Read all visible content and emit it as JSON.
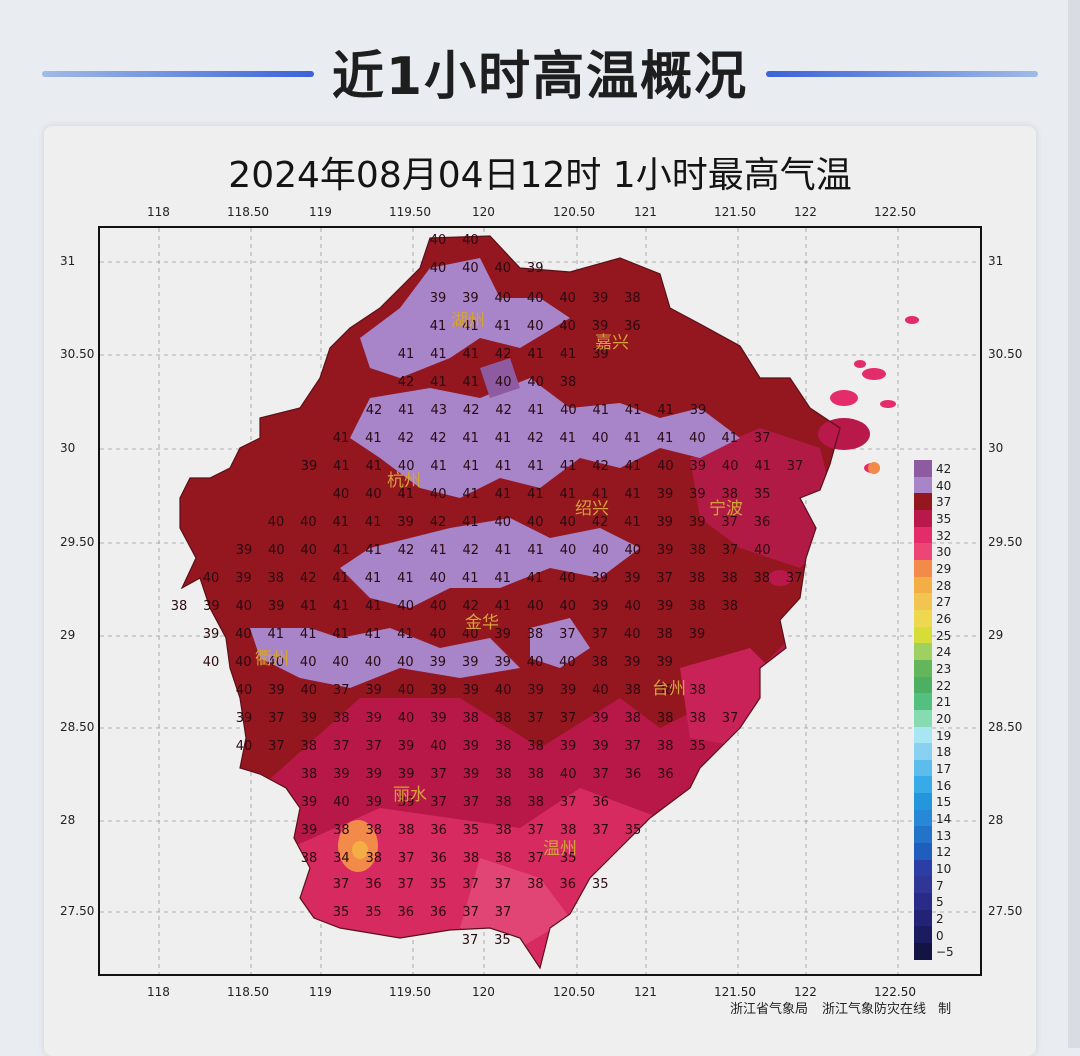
{
  "page": {
    "title": "近1小时高温概况"
  },
  "map": {
    "title": "2024年08月04日12时  1小时最高气温",
    "lon_labels": [
      "118",
      "118.50",
      "119",
      "119.50",
      "120",
      "120.50",
      "121",
      "121.50",
      "122",
      "122.50"
    ],
    "lat_labels": [
      "31",
      "30.50",
      "30",
      "29.50",
      "29",
      "28.50",
      "28",
      "27.50"
    ],
    "cities": [
      "湖州",
      "嘉兴",
      "杭州",
      "绍兴",
      "宁波",
      "金华",
      "衢州",
      "台州",
      "丽水",
      "温州"
    ],
    "temperature_grid": [
      [
        "40",
        "40"
      ],
      [
        "40",
        "40",
        "40",
        "39"
      ],
      [
        "39",
        "39",
        "40",
        "40",
        "40",
        "39",
        "38"
      ],
      [
        "41",
        "41",
        "41",
        "40",
        "40",
        "39",
        "36"
      ],
      [
        "41",
        "41",
        "41",
        "42",
        "41",
        "41",
        "39"
      ],
      [
        "42",
        "41",
        "41",
        "40",
        "40",
        "38"
      ],
      [
        "42",
        "41",
        "43",
        "42",
        "42",
        "41",
        "40",
        "41",
        "41",
        "41",
        "39"
      ],
      [
        "41",
        "41",
        "42",
        "42",
        "41",
        "41",
        "42",
        "41",
        "40",
        "41",
        "41",
        "40",
        "41",
        "37"
      ],
      [
        "39",
        "41",
        "41",
        "40",
        "41",
        "41",
        "41",
        "41",
        "41",
        "42",
        "41",
        "40",
        "39",
        "40",
        "41",
        "37"
      ],
      [
        "40",
        "40",
        "41",
        "40",
        "41",
        "41",
        "41",
        "41",
        "41",
        "41",
        "39",
        "39",
        "38",
        "35"
      ],
      [
        "40",
        "40",
        "41",
        "41",
        "39",
        "42",
        "41",
        "40",
        "40",
        "40",
        "42",
        "41",
        "39",
        "39",
        "37",
        "36"
      ],
      [
        "39",
        "40",
        "40",
        "41",
        "41",
        "42",
        "41",
        "42",
        "41",
        "41",
        "40",
        "40",
        "40",
        "39",
        "38",
        "37",
        "40"
      ],
      [
        "40",
        "39",
        "38",
        "42",
        "41",
        "41",
        "41",
        "40",
        "41",
        "41",
        "41",
        "40",
        "39",
        "39",
        "37",
        "38",
        "38",
        "38",
        "37"
      ],
      [
        "38",
        "39",
        "40",
        "39",
        "41",
        "41",
        "41",
        "40",
        "40",
        "42",
        "41",
        "40",
        "40",
        "39",
        "40",
        "39",
        "38",
        "38"
      ],
      [
        "39",
        "40",
        "41",
        "41",
        "41",
        "41",
        "41",
        "40",
        "40",
        "39",
        "38",
        "37",
        "37",
        "40",
        "38",
        "39"
      ],
      [
        "40",
        "40",
        "40",
        "40",
        "40",
        "40",
        "40",
        "39",
        "39",
        "39",
        "40",
        "40",
        "38",
        "39",
        "39"
      ],
      [
        "40",
        "39",
        "40",
        "37",
        "39",
        "40",
        "39",
        "39",
        "40",
        "39",
        "39",
        "40",
        "38",
        "38",
        "38"
      ],
      [
        "39",
        "37",
        "39",
        "38",
        "39",
        "40",
        "39",
        "38",
        "38",
        "37",
        "37",
        "39",
        "38",
        "38",
        "38",
        "37"
      ],
      [
        "40",
        "37",
        "38",
        "37",
        "37",
        "39",
        "40",
        "39",
        "38",
        "38",
        "39",
        "39",
        "37",
        "38",
        "35"
      ],
      [
        "38",
        "39",
        "39",
        "39",
        "37",
        "39",
        "38",
        "38",
        "40",
        "37",
        "36",
        "36"
      ],
      [
        "39",
        "40",
        "39",
        "39",
        "37",
        "37",
        "38",
        "38",
        "37",
        "36"
      ],
      [
        "39",
        "38",
        "38",
        "38",
        "36",
        "35",
        "38",
        "37",
        "38",
        "37",
        "35"
      ],
      [
        "38",
        "34",
        "38",
        "37",
        "36",
        "38",
        "38",
        "37",
        "35"
      ],
      [
        "37",
        "36",
        "37",
        "35",
        "37",
        "37",
        "38",
        "36",
        "35"
      ],
      [
        "35",
        "35",
        "36",
        "36",
        "37",
        "37"
      ],
      [
        "37",
        "35"
      ]
    ]
  },
  "legend": {
    "values": [
      "42",
      "40",
      "37",
      "35",
      "32",
      "30",
      "29",
      "28",
      "27",
      "26",
      "25",
      "24",
      "23",
      "22",
      "21",
      "20",
      "19",
      "18",
      "17",
      "16",
      "15",
      "14",
      "13",
      "12",
      "10",
      "7",
      "5",
      "2",
      "0",
      "−5"
    ],
    "colors": [
      "#8e5aa0",
      "#a884c8",
      "#94161f",
      "#b8184a",
      "#e52c6a",
      "#ee4577",
      "#f28a4a",
      "#f3ae46",
      "#f2c552",
      "#eed84f",
      "#d6dc38",
      "#9ed062",
      "#64b65c",
      "#4caf62",
      "#54c080",
      "#86dcb0",
      "#a8e6f4",
      "#8ad0f0",
      "#5cbcec",
      "#38aae8",
      "#2496dc",
      "#2888d8",
      "#2374c8",
      "#1f5ebc",
      "#2a3ea6",
      "#303696",
      "#2a2a88",
      "#222276",
      "#1b1b60",
      "#141444"
    ]
  },
  "credit": {
    "org1": "浙江省气象局",
    "org2": "浙江气象防灾在线 制"
  }
}
